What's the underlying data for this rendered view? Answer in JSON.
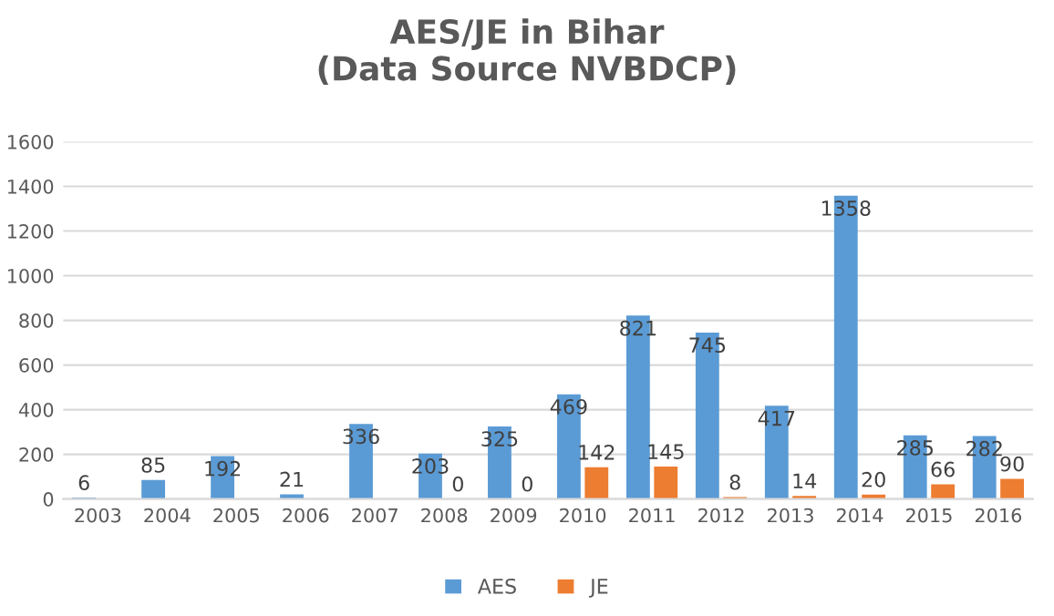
{
  "chart_data": {
    "type": "bar",
    "title": "AES/JE in Bihar\n(Data Source NVBDCP)",
    "categories": [
      "2003",
      "2004",
      "2005",
      "2006",
      "2007",
      "2008",
      "2009",
      "2010",
      "2011",
      "2012",
      "2013",
      "2014",
      "2015",
      "2016"
    ],
    "series": [
      {
        "name": "AES",
        "color": "#5b9bd5",
        "values": [
          6,
          85,
          192,
          21,
          336,
          203,
          325,
          469,
          821,
          745,
          417,
          1358,
          285,
          282
        ]
      },
      {
        "name": "JE",
        "color": "#ed7d31",
        "values": [
          null,
          null,
          null,
          null,
          null,
          0,
          0,
          142,
          145,
          8,
          14,
          20,
          66,
          90
        ]
      }
    ],
    "ylim": [
      0,
      1600
    ],
    "yticks": [
      0,
      200,
      400,
      600,
      800,
      1000,
      1200,
      1400,
      1600
    ],
    "grid": "y",
    "legend": "bottom",
    "data_labels": true
  }
}
